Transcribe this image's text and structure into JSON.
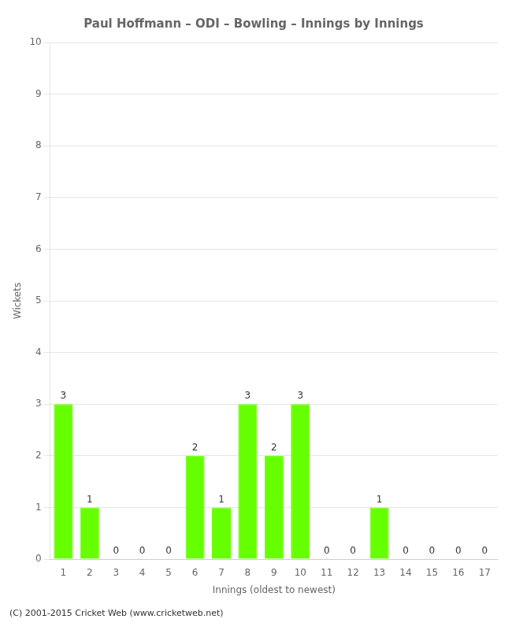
{
  "chart_data": {
    "type": "bar",
    "title": "Paul Hoffmann – ODI – Bowling – Innings by Innings",
    "xlabel": "Innings (oldest to newest)",
    "ylabel": "Wickets",
    "footer": "(C) 2001-2015 Cricket Web (www.cricketweb.net)",
    "categories": [
      1,
      2,
      3,
      4,
      5,
      6,
      7,
      8,
      9,
      10,
      11,
      12,
      13,
      14,
      15,
      16,
      17
    ],
    "values": [
      3,
      1,
      0,
      0,
      0,
      2,
      1,
      3,
      2,
      3,
      0,
      0,
      1,
      0,
      0,
      0,
      0
    ],
    "color": "#66ff00",
    "ylim": [
      0,
      10
    ],
    "yticks": [
      0,
      1,
      2,
      3,
      4,
      5,
      6,
      7,
      8,
      9,
      10
    ],
    "grid": true,
    "data_labels": true
  }
}
